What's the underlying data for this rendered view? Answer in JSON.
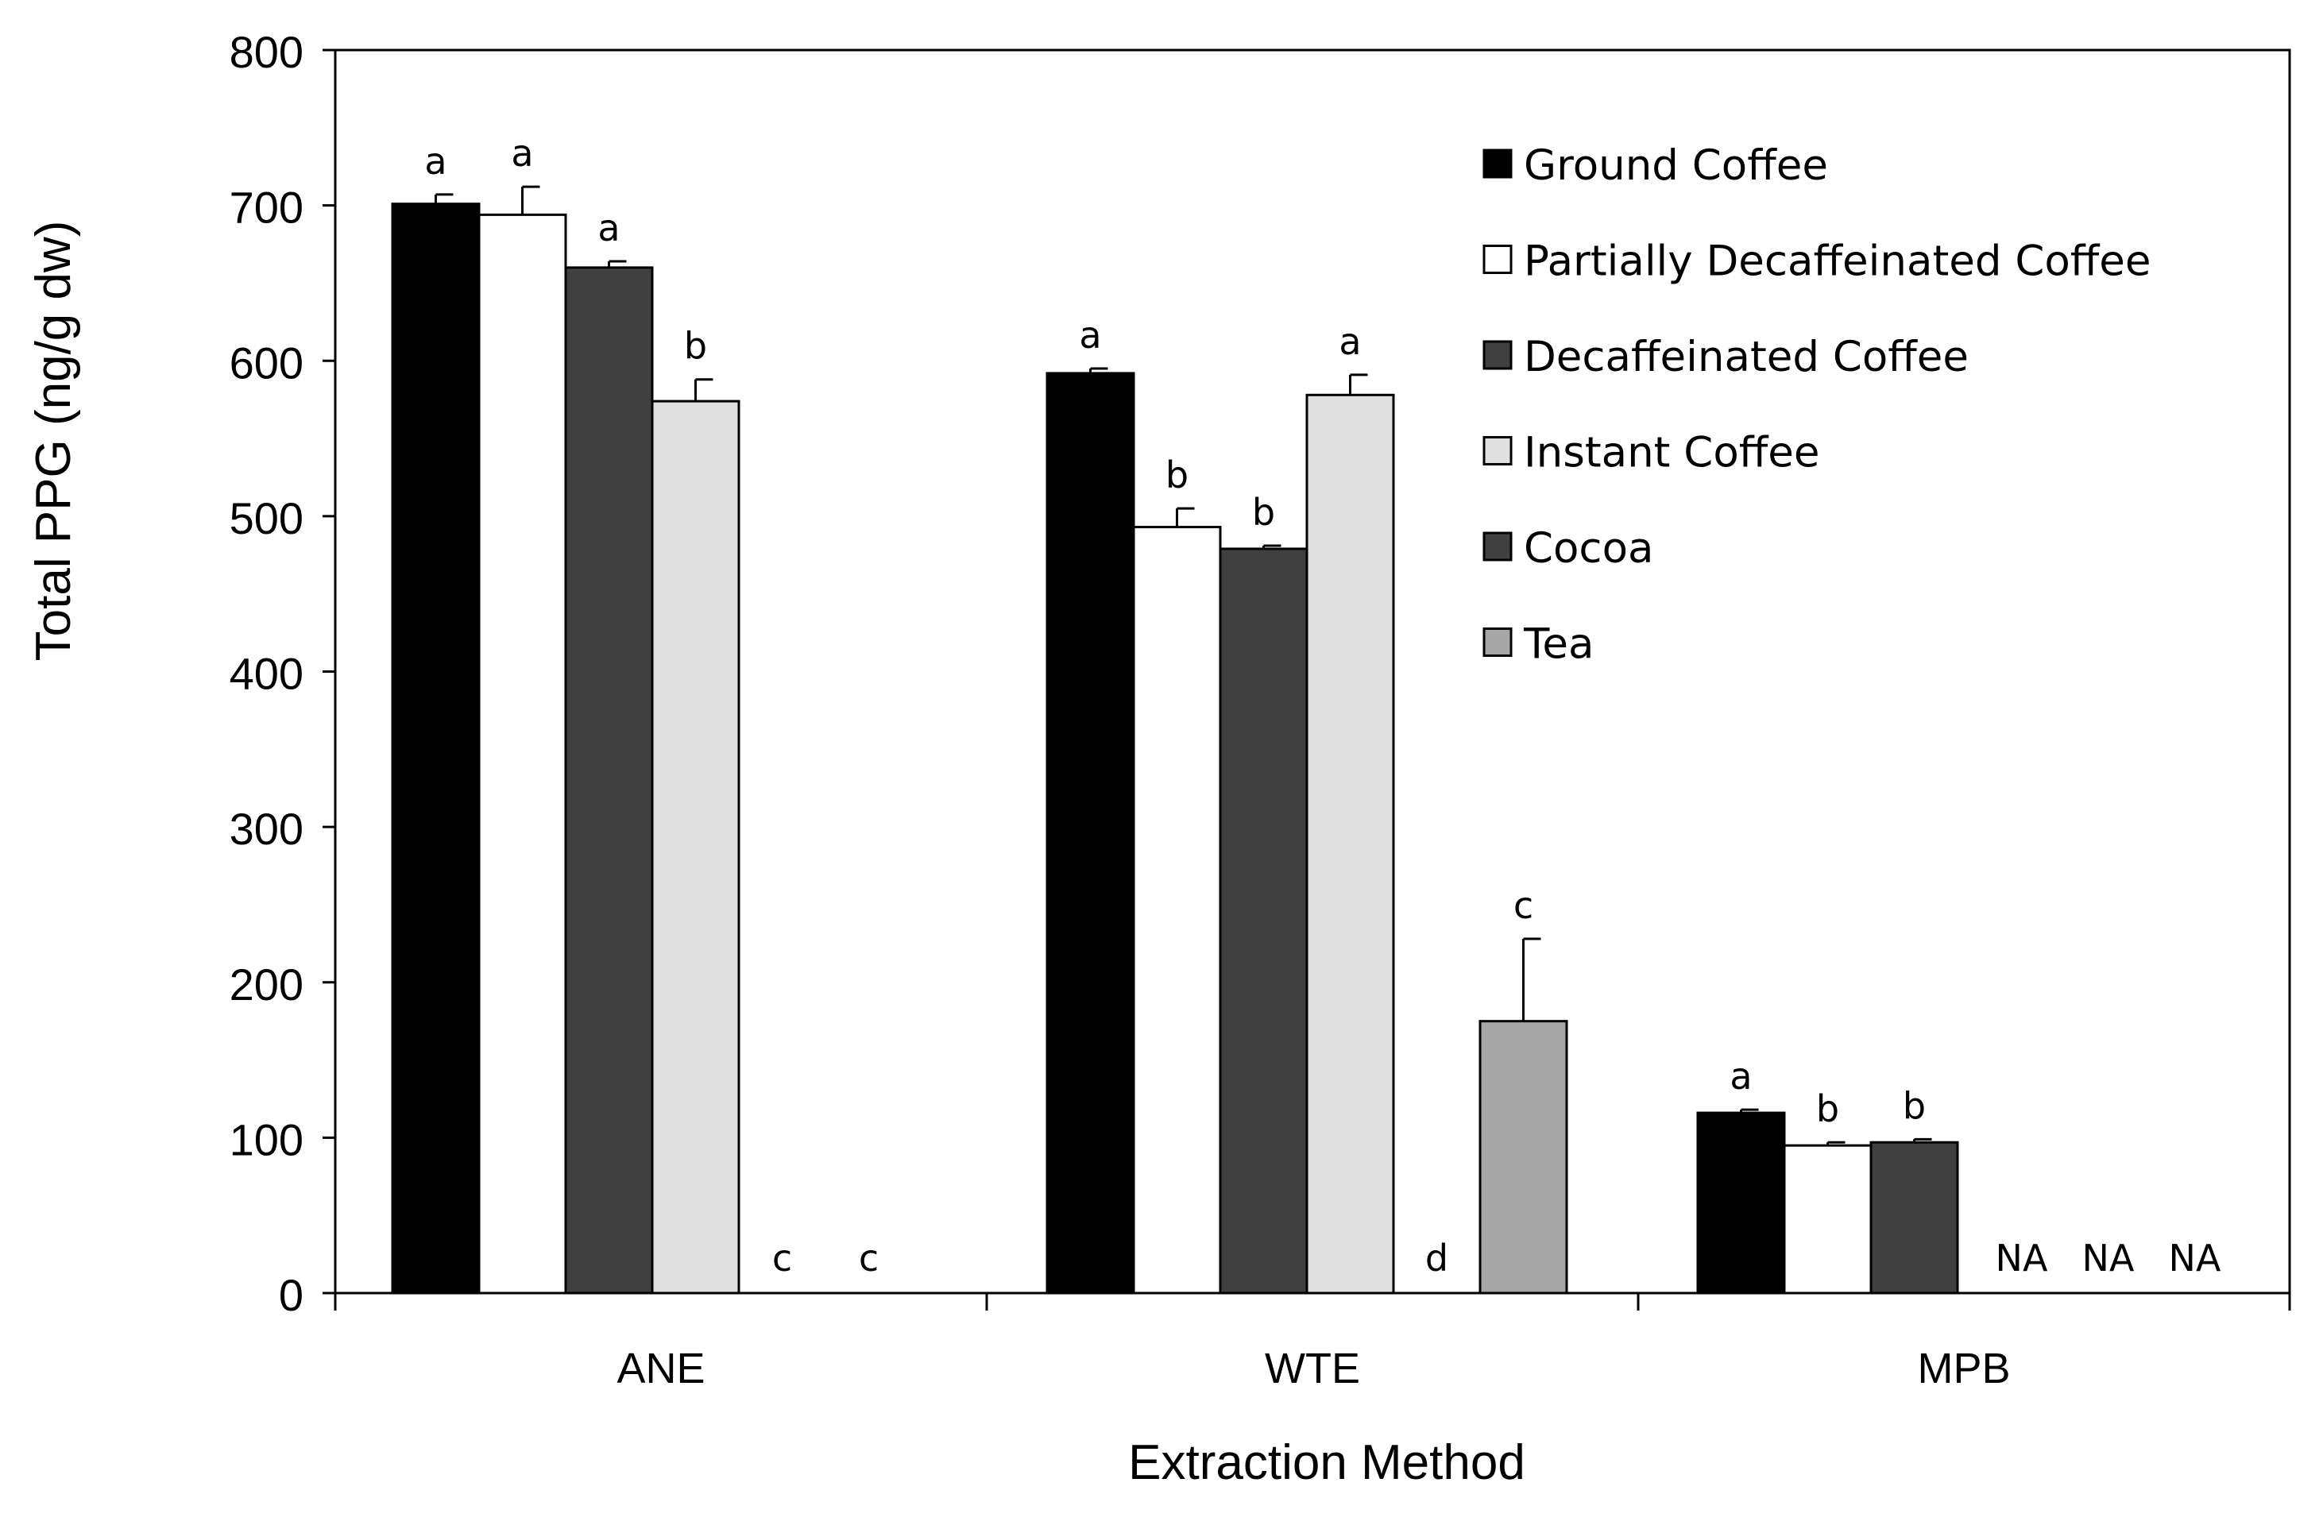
{
  "chart_data": {
    "type": "bar",
    "title": "",
    "xlabel": "Extraction Method",
    "ylabel": "Total PPG (ng/g dw)",
    "ylim": [
      0,
      800
    ],
    "yticks": [
      0,
      100,
      200,
      300,
      400,
      500,
      600,
      700,
      800
    ],
    "categories": [
      "ANE",
      "WTE",
      "MPB"
    ],
    "legend_position": "top-right",
    "series": [
      {
        "name": "Ground Coffee",
        "color": "#000000",
        "values": [
          701,
          592,
          116
        ],
        "errors": [
          6,
          3,
          2
        ],
        "labels": [
          "a",
          "a",
          "a"
        ]
      },
      {
        "name": "Partially Decaffeinated Coffee",
        "color": "#ffffff",
        "values": [
          694,
          493,
          95
        ],
        "errors": [
          18,
          12,
          2
        ],
        "labels": [
          "a",
          "b",
          "b"
        ]
      },
      {
        "name": "Decaffeinated Coffee",
        "color": "#404040",
        "values": [
          660,
          479,
          97
        ],
        "errors": [
          4,
          2,
          2
        ],
        "labels": [
          "a",
          "b",
          "b"
        ]
      },
      {
        "name": "Instant Coffee",
        "color": "#e0e0e0",
        "values": [
          574,
          578,
          0
        ],
        "errors": [
          14,
          13,
          0
        ],
        "labels": [
          "b",
          "a",
          "NA"
        ]
      },
      {
        "name": "Cocoa",
        "color": "#404040",
        "values": [
          0,
          0,
          0
        ],
        "errors": [
          0,
          0,
          0
        ],
        "labels": [
          "c",
          "d",
          "NA"
        ]
      },
      {
        "name": "Tea",
        "color": "#a6a6a6",
        "values": [
          0,
          175,
          0
        ],
        "errors": [
          0,
          53,
          0
        ],
        "labels": [
          "c",
          "c",
          "NA"
        ]
      }
    ]
  }
}
